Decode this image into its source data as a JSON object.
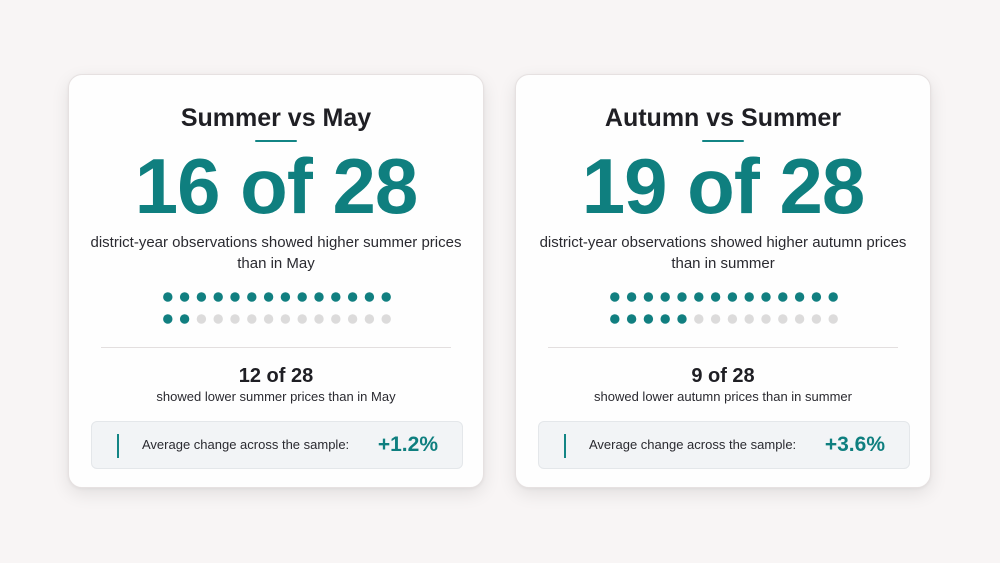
{
  "colors": {
    "accent": "#0f7f7f",
    "dot_filled": "#117f80",
    "dot_empty": "#dcdbdb",
    "background": "#f8f5f5"
  },
  "chart_data": [
    {
      "type": "table",
      "title": "Summer vs May",
      "higher_count": 16,
      "total": 28,
      "big_stat": "16 of 28",
      "description": "district-year observations showed higher summer prices than in May",
      "lower_count": 12,
      "lower_stat": "12 of 28",
      "lower_description": "showed lower summer prices than in May",
      "average_label": "Average change across the sample:",
      "average_change": "+1.2%",
      "dot_rows": [
        14,
        14
      ]
    },
    {
      "type": "table",
      "title": "Autumn vs Summer",
      "higher_count": 19,
      "total": 28,
      "big_stat": "19 of 28",
      "description": "district-year observations showed higher autumn prices than in summer",
      "lower_count": 9,
      "lower_stat": "9 of 28",
      "lower_description": "showed lower autumn prices than in summer",
      "average_label": "Average change across the sample:",
      "average_change": "+3.6%",
      "dot_rows": [
        14,
        14
      ]
    }
  ]
}
